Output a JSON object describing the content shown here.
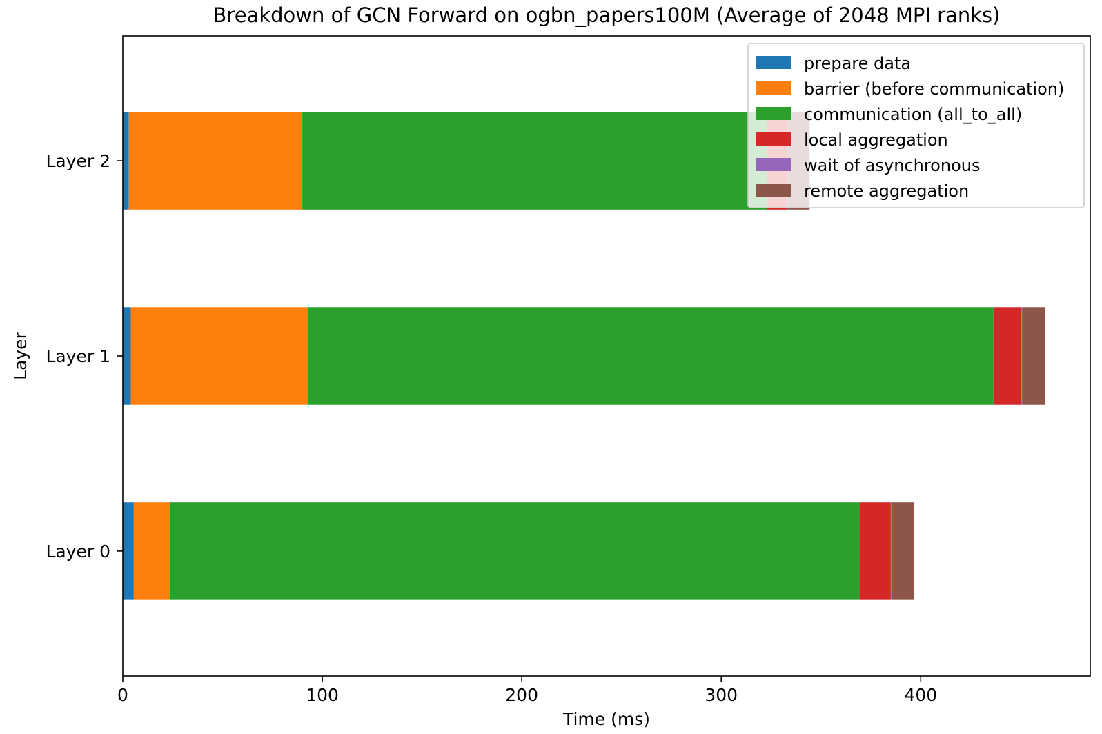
{
  "chart_data": {
    "type": "bar",
    "orientation": "horizontal",
    "stacked": true,
    "title": "Breakdown of GCN Forward on ogbn_papers100M (Average of 2048 MPI ranks)",
    "xlabel": "Time (ms)",
    "ylabel": "Layer",
    "xlim": [
      0,
      485
    ],
    "xticks": [
      0,
      100,
      200,
      300,
      400
    ],
    "categories": [
      "Layer 0",
      "Layer 1",
      "Layer 2"
    ],
    "series": [
      {
        "name": "prepare data",
        "color": "#1f77b4",
        "values": [
          5.5,
          4.0,
          3.0
        ]
      },
      {
        "name": "barrier (before communication)",
        "color": "#ff7f0e",
        "values": [
          18.0,
          89.0,
          87.0
        ]
      },
      {
        "name": "communication (all_to_all)",
        "color": "#2ca02c",
        "values": [
          346.0,
          343.5,
          233.0
        ]
      },
      {
        "name": "local aggregation",
        "color": "#d62728",
        "values": [
          15.5,
          14.0,
          10.0
        ]
      },
      {
        "name": "wait of asynchronous",
        "color": "#9467bd",
        "values": [
          0.3,
          0.3,
          0.3
        ]
      },
      {
        "name": "remote aggregation",
        "color": "#8c564b",
        "values": [
          11.5,
          11.5,
          11.0
        ]
      }
    ],
    "grid": false,
    "legend_position": "upper right"
  }
}
